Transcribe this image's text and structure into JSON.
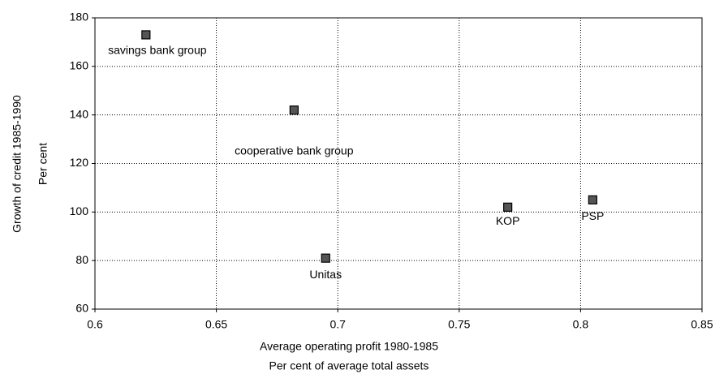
{
  "chart_data": {
    "type": "scatter",
    "xlabel": [
      "Average operating profit 1980-1985",
      "Per cent of average total assets"
    ],
    "ylabel": [
      "Growth of credit 1985-1990",
      "Per cent"
    ],
    "labels": [
      "savings bank group",
      "cooperative bank group",
      "Unitas",
      "KOP",
      "PSP"
    ],
    "x": [
      0.621,
      0.682,
      0.695,
      0.77,
      0.805
    ],
    "values": [
      173,
      142,
      81,
      102,
      105
    ],
    "color": "#555555",
    "xlim": [
      0.6,
      0.85
    ],
    "xticks": [
      0.6,
      0.65,
      0.7,
      0.75,
      0.8,
      0.85
    ],
    "ylim": [
      60,
      180
    ],
    "yticks": [
      60,
      80,
      100,
      120,
      140,
      160,
      180
    ],
    "grid": true
  }
}
